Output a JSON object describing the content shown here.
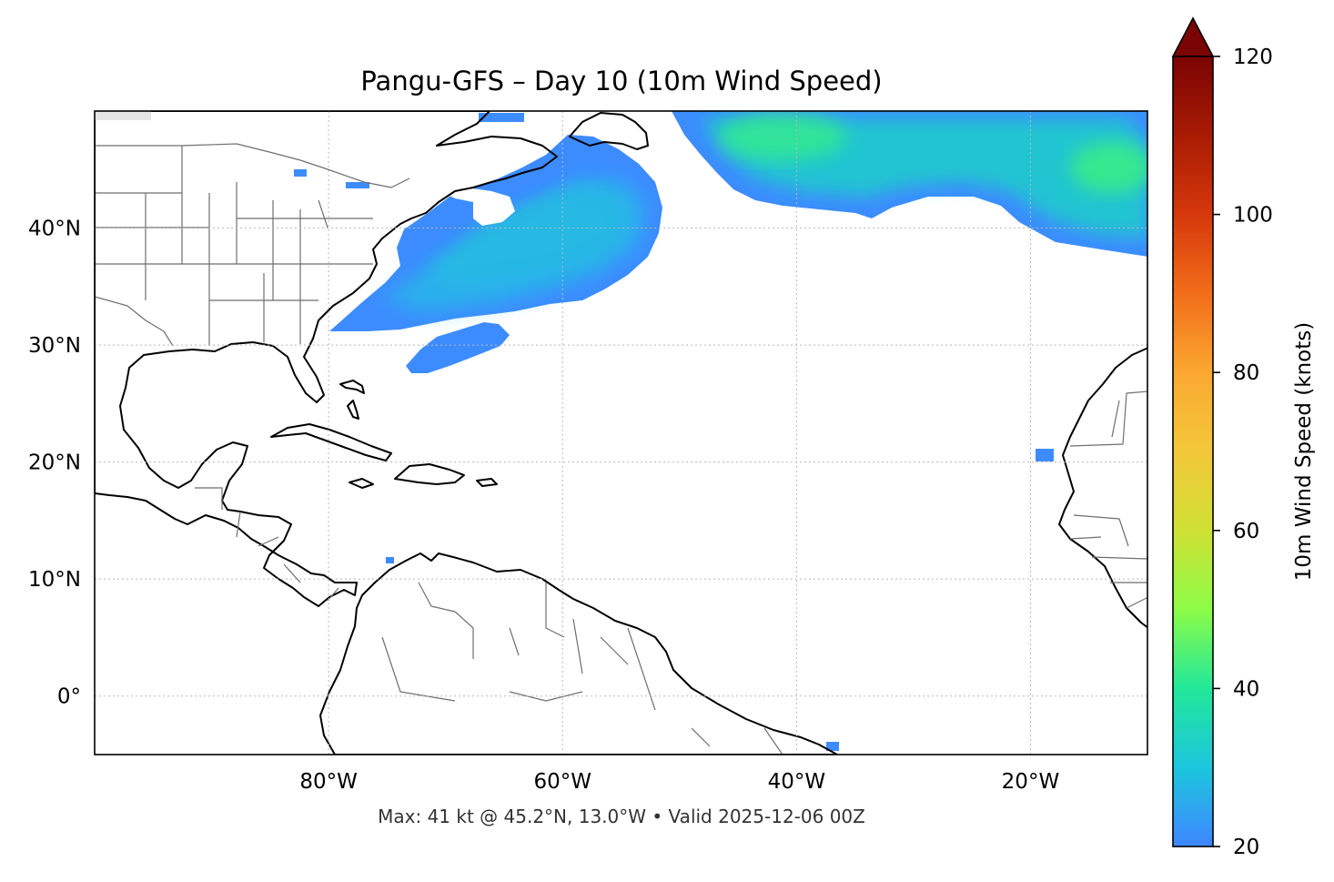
{
  "title": "Pangu-GFS – Day 10 (10m Wind Speed)",
  "footer": "Max: 41 kt @ 45.2°N, 13.0°W • Valid 2025-12-06 00Z",
  "map": {
    "lon_range": [
      -100,
      -10
    ],
    "lat_range": [
      -5,
      50
    ],
    "gridlines": true,
    "lon_ticks": [
      {
        "value": -80,
        "label": "80°W"
      },
      {
        "value": -60,
        "label": "60°W"
      },
      {
        "value": -40,
        "label": "40°W"
      },
      {
        "value": -20,
        "label": "20°W"
      }
    ],
    "lat_ticks": [
      {
        "value": 40,
        "label": "40°N"
      },
      {
        "value": 30,
        "label": "30°N"
      },
      {
        "value": 20,
        "label": "20°N"
      },
      {
        "value": 10,
        "label": "10°N"
      },
      {
        "value": 0,
        "label": "0°"
      }
    ],
    "colors": {
      "land": "#e5e5e5",
      "ocean": "#ffffff",
      "coastline": "#000000",
      "borders": "#6e6e6e"
    },
    "wind_field": {
      "description_units": "knots",
      "threshold_kt": 20,
      "max": {
        "value_kt": 41,
        "lat": 45.2,
        "lon": -13.0
      },
      "regions": [
        {
          "name": "us-east-coast-jet",
          "peak_kt": 34
        },
        {
          "name": "bermuda-tail",
          "peak_kt": 25
        },
        {
          "name": "north-atlantic-band",
          "peak_kt": 38
        },
        {
          "name": "northeast-atlantic-core",
          "peak_kt": 41
        }
      ]
    }
  },
  "colorbar": {
    "label": "10m Wind Speed (knots)",
    "vmin": 20,
    "vmax": 120,
    "extend": "max",
    "ticks": [
      {
        "value": 20,
        "label": "20"
      },
      {
        "value": 40,
        "label": "40"
      },
      {
        "value": 60,
        "label": "60"
      },
      {
        "value": 80,
        "label": "80"
      },
      {
        "value": 100,
        "label": "100"
      },
      {
        "value": 120,
        "label": "120"
      }
    ],
    "colormap_stops": [
      {
        "value": 20,
        "color": "#3f86ff"
      },
      {
        "value": 30,
        "color": "#1cc6dd"
      },
      {
        "value": 40,
        "color": "#22e89a"
      },
      {
        "value": 50,
        "color": "#8cfc48"
      },
      {
        "value": 60,
        "color": "#d0e034"
      },
      {
        "value": 70,
        "color": "#f3c73a"
      },
      {
        "value": 80,
        "color": "#fba830"
      },
      {
        "value": 90,
        "color": "#f26d1a"
      },
      {
        "value": 100,
        "color": "#d5380b"
      },
      {
        "value": 110,
        "color": "#a81b03"
      },
      {
        "value": 120,
        "color": "#7a0403"
      }
    ],
    "extend_color": "#7a0403"
  }
}
